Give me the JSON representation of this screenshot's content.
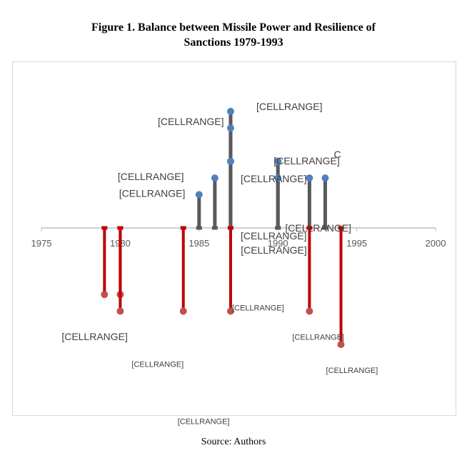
{
  "page": {
    "title_line1": "Figure 1. Balance between Missile Power and Resilience of",
    "title_line2": "Sanctions 1979-1993",
    "source": "Source: Authors"
  },
  "colors": {
    "positive": "#4f81bd",
    "positive_stem": "#595959",
    "negative": "#c00000",
    "negative_dot": "#c0504d",
    "axis": "#bfbfbf"
  },
  "chart_data": {
    "type": "scatter",
    "style": "lollipop",
    "xlim": [
      1975,
      2000
    ],
    "x_ticks": [
      1975,
      1980,
      1985,
      1990,
      1995,
      2000
    ],
    "series": [
      {
        "points": [
          {
            "x": 1985,
            "y": 2.0,
            "label": "[CELLRANGE]"
          },
          {
            "x": 1986,
            "y": 3.0,
            "label": "[CELLRANGE]"
          },
          {
            "x": 1987,
            "y": 4.0,
            "label": "[CELLRANGE]"
          },
          {
            "x": 1987,
            "y": 7.0,
            "label": "[CELLRANGE]"
          },
          {
            "x": 1987,
            "y": 6.0,
            "label": "[CELLRANGE]"
          },
          {
            "x": 1987,
            "y": 4.0,
            "label": "[CELLRANGE]"
          },
          {
            "x": 1990,
            "y": 4.0,
            "label": "[CELLRANGE]"
          },
          {
            "x": 1990,
            "y": 3.0,
            "label": "[CELLRANGE]"
          },
          {
            "x": 1992,
            "y": 3.0,
            "label": "[CELLRANGE]"
          },
          {
            "x": 1993,
            "y": 3.0,
            "label": "C"
          }
        ]
      },
      {
        "points": [
          {
            "x": 1979,
            "y": -4.0,
            "label": "[CELLRANGE]"
          },
          {
            "x": 1980,
            "y": -4.0,
            "label": ""
          },
          {
            "x": 1980,
            "y": -5.0,
            "label": "[CELLRANGE]"
          },
          {
            "x": 1984,
            "y": -5.0,
            "label": "[CELLRANGE]"
          },
          {
            "x": 1987,
            "y": -5.0,
            "label": "[CELLRANGE]"
          },
          {
            "x": 1992,
            "y": -5.0,
            "label": "[CELLRANGE]"
          },
          {
            "x": 1994,
            "y": -7.0,
            "label": "[CELLRANGE]"
          }
        ]
      }
    ]
  }
}
